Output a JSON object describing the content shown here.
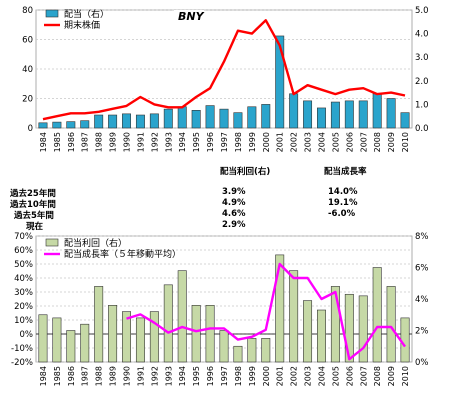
{
  "summary": {
    "headers": {
      "yield": "配当利回(右)",
      "growth": "配当成長率"
    },
    "rows": [
      {
        "label": "過去25年間",
        "yield": "3.9%",
        "growth": "14.0%"
      },
      {
        "label": "過去10年間",
        "yield": "4.9%",
        "growth": "19.1%"
      },
      {
        "label": "過去5年間",
        "yield": "4.6%",
        "growth": "-6.0%"
      },
      {
        "label": "現在",
        "yield": "2.9%",
        "growth": ""
      }
    ]
  },
  "colors": {
    "dividend_bar": "#2aa4cc",
    "price_line": "#ff0000",
    "yield_bar": "#c6d9a6",
    "growth_line": "#ff00ff"
  },
  "chart_data": [
    {
      "type": "bar",
      "title": "BNY",
      "x": [
        "1984",
        "1985",
        "1986",
        "1987",
        "1988",
        "1989",
        "1990",
        "1991",
        "1992",
        "1993",
        "1994",
        "1995",
        "1996",
        "1997",
        "1998",
        "1999",
        "2000",
        "2001",
        "2002",
        "2003",
        "2004",
        "2005",
        "2006",
        "2007",
        "2008",
        "2009",
        "2010"
      ],
      "left_axis": {
        "ylim": [
          0,
          80
        ],
        "ticks": [
          0,
          20,
          40,
          60,
          80
        ]
      },
      "right_axis": {
        "ylim": [
          0,
          5
        ],
        "ticks": [
          "0.0",
          "1.0",
          "2.0",
          "3.0",
          "4.0",
          "5.0"
        ]
      },
      "grid": true,
      "legend_position": "top-left",
      "series": [
        {
          "name": "配当（右）",
          "kind": "bar",
          "axis": "right",
          "values": [
            0.22,
            0.25,
            0.27,
            0.31,
            0.55,
            0.55,
            0.6,
            0.55,
            0.6,
            0.8,
            0.9,
            0.75,
            0.95,
            0.8,
            0.65,
            0.9,
            1.0,
            3.9,
            1.45,
            1.15,
            0.85,
            1.1,
            1.15,
            1.15,
            1.45,
            1.25,
            0.65
          ]
        },
        {
          "name": "期末株価",
          "kind": "line",
          "axis": "left",
          "values": [
            6,
            8,
            10,
            10,
            11,
            13,
            15,
            21,
            16,
            14,
            14,
            21,
            27,
            45,
            66,
            64,
            73,
            56,
            23,
            29,
            26,
            23,
            26,
            27,
            23,
            24,
            22
          ]
        }
      ]
    },
    {
      "type": "bar",
      "x": [
        "1984",
        "1985",
        "1986",
        "1987",
        "1988",
        "1989",
        "1990",
        "1991",
        "1992",
        "1993",
        "1994",
        "1995",
        "1996",
        "1997",
        "1998",
        "1999",
        "2000",
        "2001",
        "2002",
        "2003",
        "2004",
        "2005",
        "2006",
        "2007",
        "2008",
        "2009",
        "2010"
      ],
      "left_axis": {
        "ylim": [
          -20,
          70
        ],
        "ticks": [
          "-20%",
          "-10%",
          "0%",
          "10%",
          "20%",
          "30%",
          "40%",
          "50%",
          "60%",
          "70%"
        ]
      },
      "right_axis": {
        "ylim": [
          0,
          8
        ],
        "ticks": [
          "0%",
          "2%",
          "4%",
          "6%",
          "8%"
        ]
      },
      "grid": true,
      "legend_position": "top-left",
      "series": [
        {
          "name": "配当利回（右）",
          "kind": "bar",
          "axis": "right",
          "values": [
            3.0,
            2.8,
            2.0,
            2.4,
            4.8,
            3.6,
            3.2,
            2.8,
            3.2,
            4.9,
            5.8,
            3.6,
            3.6,
            2.0,
            1.0,
            1.5,
            1.5,
            6.8,
            5.8,
            3.9,
            3.3,
            4.8,
            4.3,
            4.2,
            6.0,
            4.8,
            2.8
          ]
        },
        {
          "name": "配当成長率（５年移動平均）",
          "kind": "line",
          "axis": "left",
          "values": [
            null,
            null,
            null,
            null,
            null,
            null,
            11,
            14,
            8,
            1,
            5,
            2,
            4,
            4,
            -4,
            -2,
            3,
            50,
            40,
            40,
            25,
            30,
            -18,
            -10,
            5,
            5,
            -9
          ]
        }
      ]
    }
  ]
}
